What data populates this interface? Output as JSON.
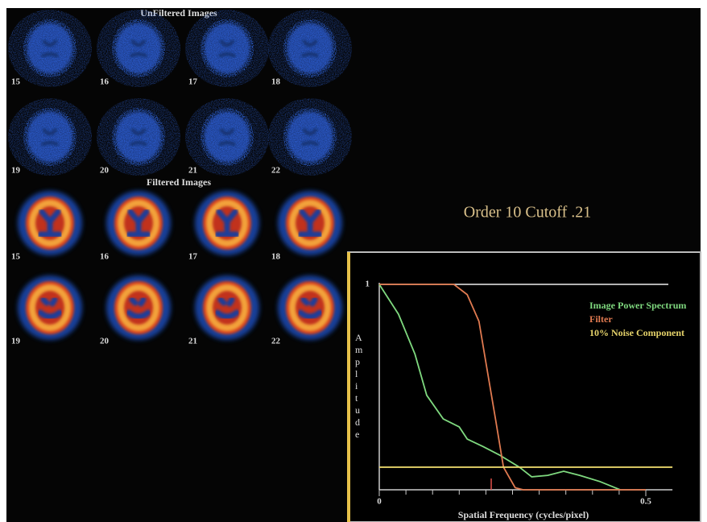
{
  "unfiltered": {
    "title": "UnFiltered Images",
    "labels": [
      "15",
      "16",
      "17",
      "18",
      "19",
      "20",
      "21",
      "22"
    ]
  },
  "filtered": {
    "title": "Filtered Images",
    "labels": [
      "15",
      "16",
      "17",
      "18",
      "19",
      "20",
      "21",
      "22"
    ]
  },
  "heading": "Order 10 Cutoff .21",
  "chart_data": {
    "type": "line",
    "x_label": "Spatial Frequency (cycles/pixel)",
    "y_label": "Amplitude",
    "xlim": [
      0,
      0.55
    ],
    "ylim": [
      0,
      1.0
    ],
    "xticks": [
      0,
      0.5
    ],
    "xminorticks": [
      0.05,
      0.1,
      0.15,
      0.2,
      0.25,
      0.3,
      0.35,
      0.4,
      0.45
    ],
    "yticks": [
      1
    ],
    "cutoff_marker": 0.21,
    "series": [
      {
        "name": "Image Power Spectrum",
        "color": "#7fd97f",
        "x": [
          0,
          0.036,
          0.067,
          0.089,
          0.12,
          0.15,
          0.165,
          0.195,
          0.225,
          0.263,
          0.286,
          0.316,
          0.346,
          0.376,
          0.414,
          0.452
        ],
        "values": [
          1.0,
          0.855,
          0.66,
          0.46,
          0.345,
          0.306,
          0.247,
          0.21,
          0.17,
          0.11,
          0.063,
          0.07,
          0.09,
          0.07,
          0.04,
          0
        ]
      },
      {
        "name": "Filter",
        "color": "#e07a50",
        "x": [
          0,
          0.14,
          0.165,
          0.187,
          0.2,
          0.218,
          0.233,
          0.255,
          0.27,
          0.5
        ],
        "values": [
          1.0,
          1.0,
          0.95,
          0.82,
          0.62,
          0.345,
          0.11,
          0.01,
          0,
          0
        ]
      },
      {
        "name": "10% Noise Component",
        "color": "#e6d36a",
        "x": [
          0,
          0.55
        ],
        "values": [
          0.11,
          0.11
        ]
      }
    ]
  }
}
